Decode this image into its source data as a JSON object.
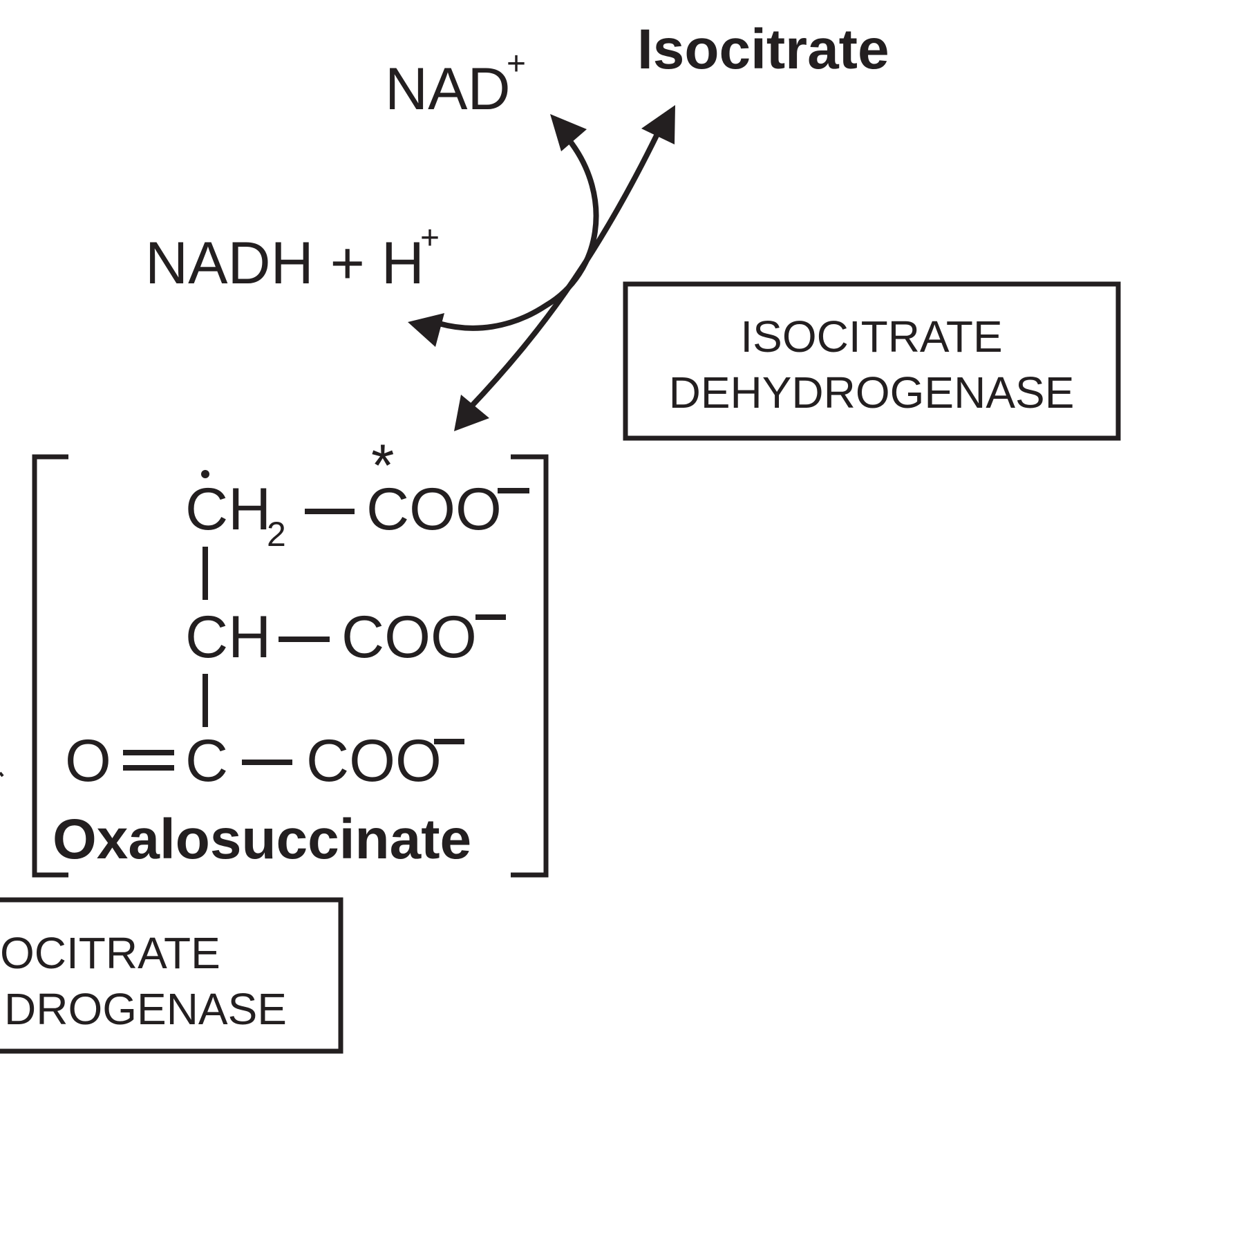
{
  "compounds": {
    "isocitrate": "Isocitrate",
    "oxalosuccinate": "Oxalosuccinate"
  },
  "cofactors": {
    "nad_base": "NAD",
    "nad_charge": "+",
    "nadh_base": "NADH + H",
    "nadh_charge": "+"
  },
  "enzyme_upper": {
    "line1": "ISOCITRATE",
    "line2": "DEHYDROGENASE"
  },
  "enzyme_lower": {
    "line1": "OCITRATE",
    "line2": "DROGENASE"
  },
  "structure": {
    "row1_group": "CH",
    "row1_subscript": "2",
    "row1_carboxyl": "COO",
    "row2_group": "CH",
    "row2_carboxyl": "COO",
    "row3_oxygen": "O",
    "row3_carbon": "C",
    "row3_carboxyl": "COO",
    "charge_minus": "−",
    "label_mark": "*"
  },
  "colors": {
    "ink": "#231f20",
    "background": "#ffffff"
  }
}
